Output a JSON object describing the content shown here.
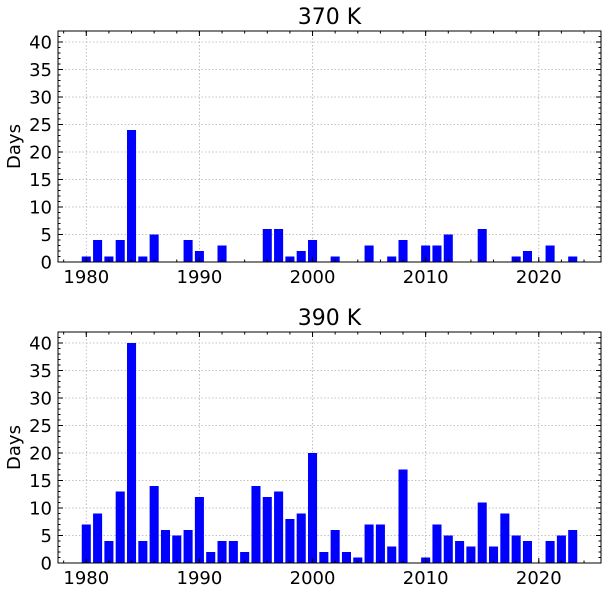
{
  "chart_data": [
    {
      "type": "bar",
      "title": "370 K",
      "xlabel": "",
      "ylabel": "Days",
      "xlim": [
        1977.5,
        2025.5
      ],
      "ylim": [
        0,
        42
      ],
      "yticks": [
        0,
        5,
        10,
        15,
        20,
        25,
        30,
        35,
        40
      ],
      "xticks": [
        1980,
        1990,
        2000,
        2010,
        2020
      ],
      "grid": true,
      "color": "#0000ff",
      "x": [
        1980,
        1981,
        1982,
        1983,
        1984,
        1985,
        1986,
        1989,
        1990,
        1992,
        1996,
        1997,
        1998,
        1999,
        2000,
        2002,
        2005,
        2007,
        2008,
        2010,
        2011,
        2012,
        2015,
        2018,
        2019,
        2021,
        2023
      ],
      "values": [
        1,
        4,
        1,
        4,
        24,
        1,
        5,
        4,
        2,
        3,
        6,
        6,
        1,
        2,
        4,
        1,
        3,
        1,
        4,
        3,
        3,
        5,
        6,
        1,
        2,
        3,
        1
      ]
    },
    {
      "type": "bar",
      "title": "390 K",
      "xlabel": "",
      "ylabel": "Days",
      "xlim": [
        1977.5,
        2025.5
      ],
      "ylim": [
        0,
        42
      ],
      "yticks": [
        0,
        5,
        10,
        15,
        20,
        25,
        30,
        35,
        40
      ],
      "xticks": [
        1980,
        1990,
        2000,
        2010,
        2020
      ],
      "grid": true,
      "color": "#0000ff",
      "x": [
        1980,
        1981,
        1982,
        1983,
        1984,
        1985,
        1986,
        1987,
        1988,
        1989,
        1990,
        1991,
        1992,
        1993,
        1994,
        1995,
        1996,
        1997,
        1998,
        1999,
        2000,
        2001,
        2002,
        2003,
        2004,
        2005,
        2006,
        2007,
        2008,
        2010,
        2011,
        2012,
        2013,
        2014,
        2015,
        2016,
        2017,
        2018,
        2019,
        2021,
        2022,
        2023
      ],
      "values": [
        7,
        9,
        4,
        13,
        40,
        4,
        14,
        6,
        5,
        6,
        12,
        2,
        4,
        4,
        2,
        14,
        12,
        13,
        8,
        9,
        20,
        2,
        6,
        2,
        1,
        7,
        7,
        3,
        17,
        1,
        7,
        5,
        4,
        3,
        11,
        3,
        9,
        5,
        4,
        4,
        5,
        6
      ]
    }
  ]
}
